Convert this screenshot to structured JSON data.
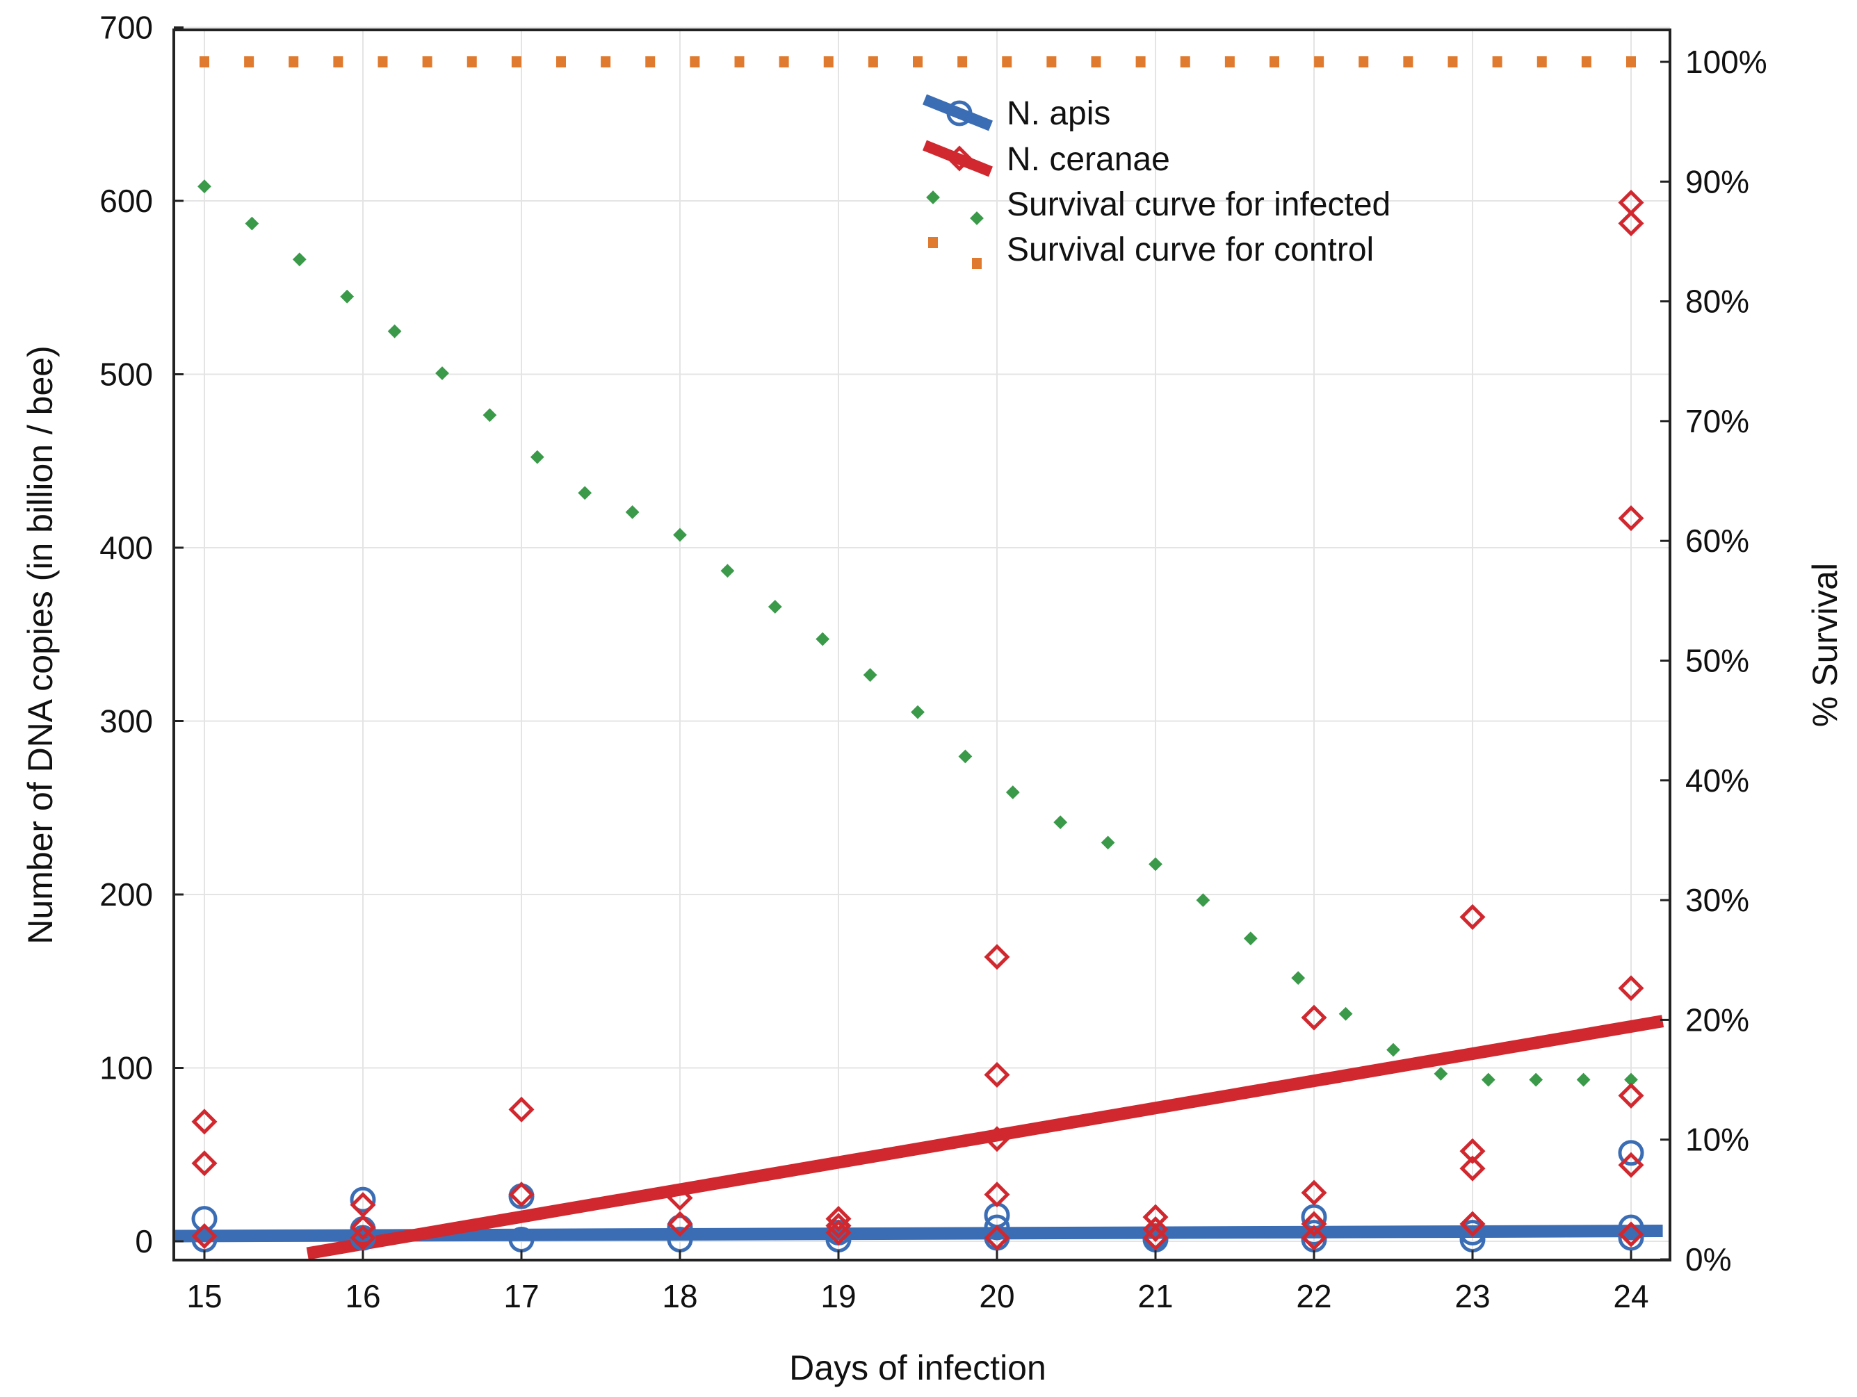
{
  "chart_data": {
    "type": "scatter",
    "xlabel": "Days of infection",
    "ylabel": "Number of DNA copies (in billion / bee)",
    "y2label": "% Survival",
    "xlim": [
      14.8,
      24.2
    ],
    "ylim": [
      -10,
      700
    ],
    "y2lim": [
      0,
      100
    ],
    "x_ticks": [
      15,
      16,
      17,
      18,
      19,
      20,
      21,
      22,
      23,
      24
    ],
    "y_ticks": [
      0,
      100,
      200,
      300,
      400,
      500,
      600,
      700
    ],
    "y2_ticks": [
      "0%",
      "10%",
      "20%",
      "30%",
      "40%",
      "50%",
      "60%",
      "70%",
      "80%",
      "90%",
      "100%"
    ],
    "grid": true,
    "legend_position": "top-right",
    "series": [
      {
        "name": "N. apis",
        "color": "#3b6db5",
        "marker": "circle",
        "points": [
          [
            15,
            13
          ],
          [
            15,
            1
          ],
          [
            16,
            24
          ],
          [
            16,
            7
          ],
          [
            16,
            2
          ],
          [
            17,
            26
          ],
          [
            17,
            1
          ],
          [
            18,
            8
          ],
          [
            18,
            1
          ],
          [
            19,
            5
          ],
          [
            19,
            1
          ],
          [
            20,
            15
          ],
          [
            20,
            8
          ],
          [
            20,
            2
          ],
          [
            21,
            3
          ],
          [
            21,
            1
          ],
          [
            22,
            14
          ],
          [
            22,
            5
          ],
          [
            22,
            1
          ],
          [
            23,
            5
          ],
          [
            23,
            1
          ],
          [
            24,
            51
          ],
          [
            24,
            8
          ],
          [
            24,
            2
          ]
        ],
        "trend": {
          "x": [
            14.8,
            24.2
          ],
          "y": [
            3,
            6
          ]
        }
      },
      {
        "name": "N. ceranae",
        "color": "#d0282e",
        "marker": "diamond",
        "points": [
          [
            15,
            69
          ],
          [
            15,
            45
          ],
          [
            15,
            3
          ],
          [
            16,
            21
          ],
          [
            16,
            8
          ],
          [
            16,
            2
          ],
          [
            17,
            76
          ],
          [
            17,
            27
          ],
          [
            18,
            25
          ],
          [
            18,
            10
          ],
          [
            19,
            13
          ],
          [
            19,
            9
          ],
          [
            19,
            5
          ],
          [
            20,
            164
          ],
          [
            20,
            96
          ],
          [
            20,
            27
          ],
          [
            20,
            59
          ],
          [
            20,
            2
          ],
          [
            21,
            14
          ],
          [
            21,
            7
          ],
          [
            21,
            2
          ],
          [
            22,
            129
          ],
          [
            22,
            28
          ],
          [
            22,
            10
          ],
          [
            22,
            2
          ],
          [
            23,
            187
          ],
          [
            23,
            52
          ],
          [
            23,
            42
          ],
          [
            23,
            10
          ],
          [
            24,
            599
          ],
          [
            24,
            587
          ],
          [
            24,
            417
          ],
          [
            24,
            146
          ],
          [
            24,
            84
          ],
          [
            24,
            44
          ],
          [
            24,
            4
          ]
        ],
        "trend": {
          "x": [
            15.65,
            24.2
          ],
          "y": [
            -7,
            127
          ]
        }
      },
      {
        "name": "Survival curve for infected",
        "color": "#3a9a4a",
        "axis": "right",
        "style": "dotted",
        "x": [
          15,
          15.3,
          15.6,
          15.9,
          16.2,
          16.5,
          16.8,
          17.1,
          17.4,
          17.7,
          18.0,
          18.3,
          18.6,
          18.9,
          19.2,
          19.5,
          19.8,
          20.1,
          20.4,
          20.7,
          21.0,
          21.3,
          21.6,
          21.9,
          22.2,
          22.5,
          22.8,
          23.1,
          23.4,
          23.7,
          24.0
        ],
        "y": [
          89.6,
          86.5,
          83.5,
          80.4,
          77.5,
          74.0,
          70.5,
          67.0,
          64.0,
          62.4,
          60.5,
          57.5,
          54.5,
          51.8,
          48.8,
          45.7,
          42.0,
          39.0,
          36.5,
          34.8,
          33.0,
          30.0,
          26.8,
          23.5,
          20.5,
          17.5,
          15.5,
          15.0,
          15.0,
          15.0,
          15.0
        ]
      },
      {
        "name": "Survival curve for control",
        "color": "#e07a2e",
        "axis": "right",
        "style": "dotted",
        "x": [
          15,
          24
        ],
        "y": [
          100,
          100
        ]
      }
    ]
  }
}
